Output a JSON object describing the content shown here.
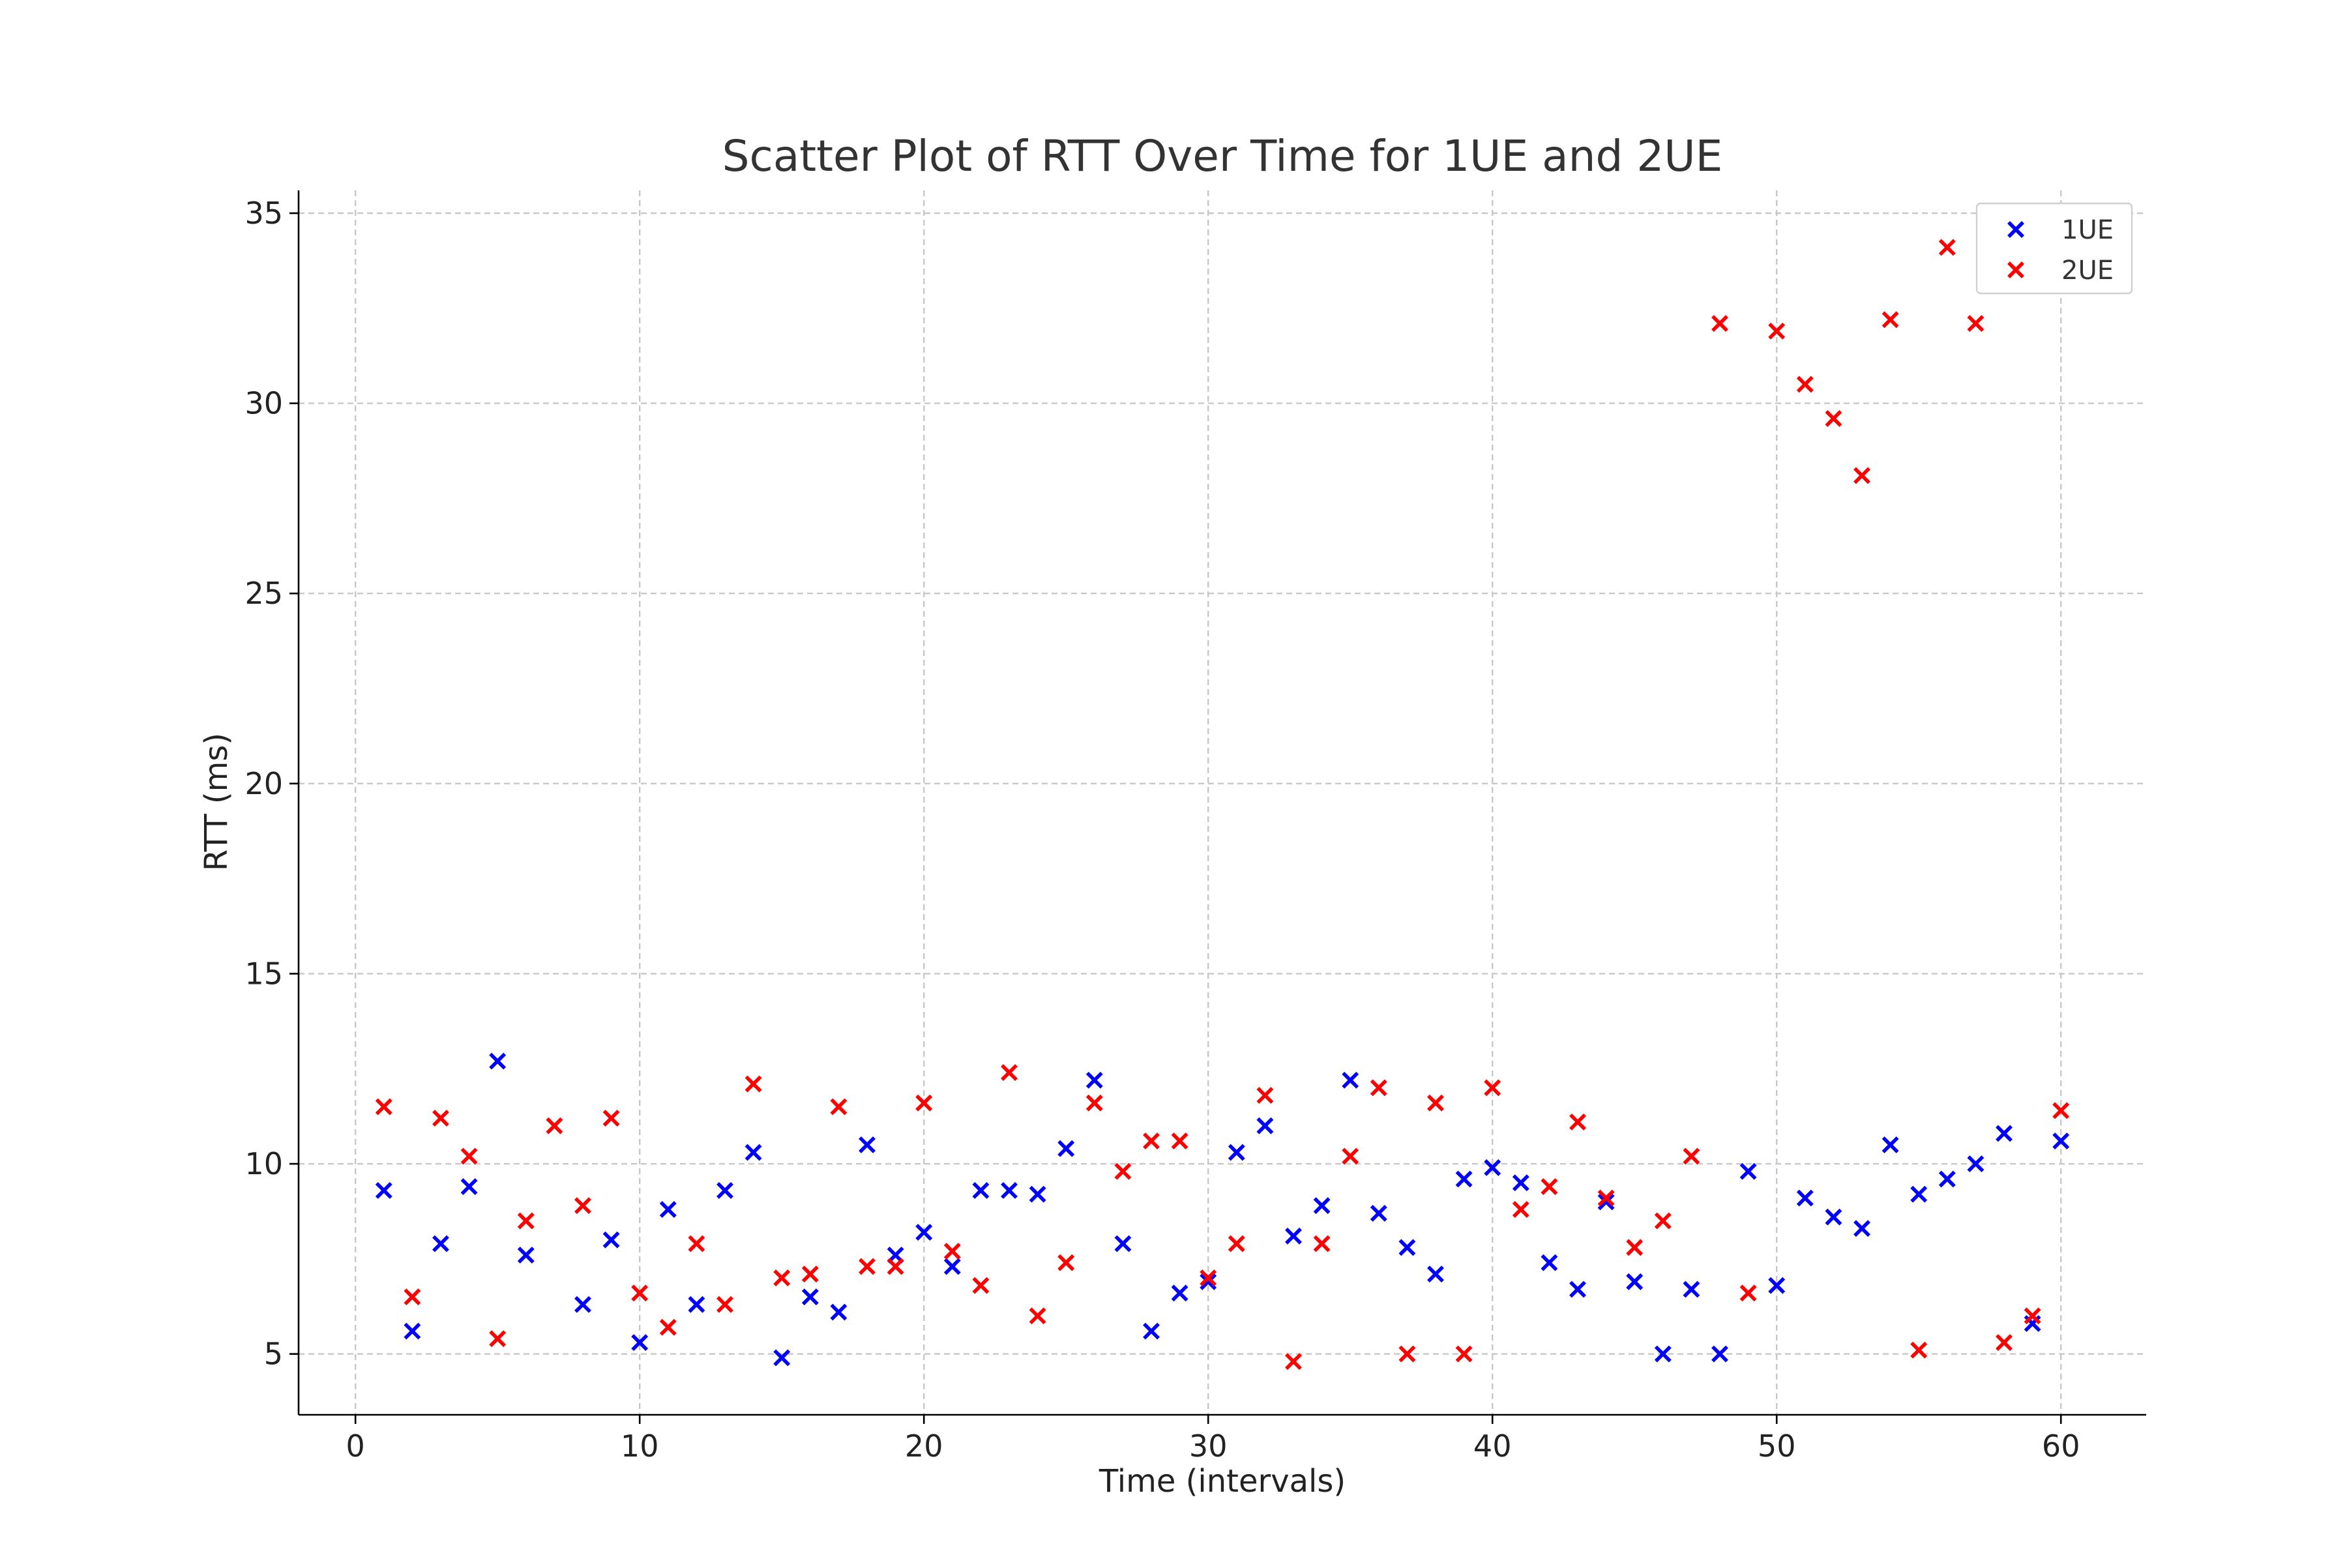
{
  "chart_data": {
    "type": "scatter",
    "title": "Scatter Plot of RTT Over Time for 1UE and 2UE",
    "xlabel": "Time (intervals)",
    "ylabel": "RTT (ms)",
    "xlim": [
      -2,
      63
    ],
    "ylim": [
      3.4,
      35.6
    ],
    "xticks": [
      0,
      10,
      20,
      30,
      40,
      50,
      60
    ],
    "yticks": [
      5,
      10,
      15,
      20,
      25,
      30,
      35
    ],
    "grid": true,
    "legend_position": "top-right",
    "marker": "x",
    "x": [
      1,
      2,
      3,
      4,
      5,
      6,
      7,
      8,
      9,
      10,
      11,
      12,
      13,
      14,
      15,
      16,
      17,
      18,
      19,
      20,
      21,
      22,
      23,
      24,
      25,
      26,
      27,
      28,
      29,
      30,
      31,
      32,
      33,
      34,
      35,
      36,
      37,
      38,
      39,
      40,
      41,
      42,
      43,
      44,
      45,
      46,
      47,
      48,
      49,
      50,
      51,
      52,
      53,
      54,
      55,
      56,
      57,
      58,
      59,
      60
    ],
    "series": [
      {
        "name": "1UE",
        "color": "#0000ff",
        "values": [
          9.3,
          5.6,
          7.9,
          9.4,
          12.7,
          7.6,
          null,
          6.3,
          8.0,
          5.3,
          8.8,
          6.3,
          9.3,
          10.3,
          4.9,
          6.5,
          6.1,
          10.5,
          7.6,
          8.2,
          7.3,
          9.3,
          9.3,
          9.2,
          10.4,
          12.2,
          7.9,
          5.6,
          6.6,
          6.9,
          10.3,
          11.0,
          8.1,
          8.9,
          12.2,
          8.7,
          7.8,
          7.1,
          9.6,
          9.9,
          9.5,
          7.4,
          6.7,
          9.0,
          6.9,
          5.0,
          6.7,
          5.0,
          9.8,
          6.8,
          9.1,
          8.6,
          8.3,
          10.5,
          9.2,
          9.6,
          10.0,
          10.8,
          5.8,
          10.6
        ]
      },
      {
        "name": "2UE",
        "color": "#ff0000",
        "values": [
          11.5,
          6.5,
          11.2,
          10.2,
          5.4,
          8.5,
          11.0,
          8.9,
          11.2,
          6.6,
          5.7,
          7.9,
          6.3,
          12.1,
          7.0,
          7.1,
          11.5,
          7.3,
          7.3,
          11.6,
          7.7,
          6.8,
          12.4,
          6.0,
          7.4,
          11.6,
          9.8,
          10.6,
          10.6,
          7.0,
          7.9,
          11.8,
          4.8,
          7.9,
          10.2,
          12.0,
          5.0,
          11.6,
          5.0,
          12.0,
          8.8,
          9.4,
          11.1,
          9.1,
          7.8,
          8.5,
          10.2,
          32.1,
          6.6,
          31.9,
          30.5,
          29.6,
          28.1,
          32.2,
          5.1,
          34.1,
          32.1,
          5.3,
          6.0,
          11.4
        ]
      }
    ]
  }
}
